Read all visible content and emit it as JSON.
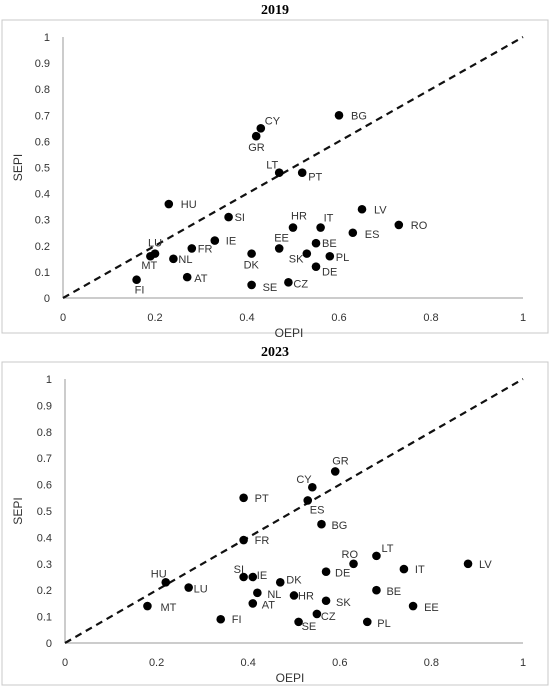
{
  "chart_data": [
    {
      "type": "scatter",
      "title": "2019",
      "xlabel": "OEPI",
      "ylabel": "SEPI",
      "xlim": [
        0,
        1
      ],
      "ylim": [
        0,
        1
      ],
      "xticks": [
        "0",
        "0.2",
        "0.4",
        "0.6",
        "0.8",
        "1"
      ],
      "yticks": [
        "0",
        "0.1",
        "0.2",
        "0.3",
        "0.4",
        "0.5",
        "0.6",
        "0.7",
        "0.8",
        "0.9",
        "1"
      ],
      "grid": false,
      "reference_line": "y = x (dashed)",
      "points": [
        {
          "label": "BG",
          "x": 0.6,
          "y": 0.7
        },
        {
          "label": "CY",
          "x": 0.43,
          "y": 0.65
        },
        {
          "label": "GR",
          "x": 0.42,
          "y": 0.62
        },
        {
          "label": "LT",
          "x": 0.47,
          "y": 0.48
        },
        {
          "label": "PT",
          "x": 0.52,
          "y": 0.48
        },
        {
          "label": "HU",
          "x": 0.23,
          "y": 0.36
        },
        {
          "label": "SI",
          "x": 0.36,
          "y": 0.31
        },
        {
          "label": "HR",
          "x": 0.5,
          "y": 0.27
        },
        {
          "label": "IT",
          "x": 0.56,
          "y": 0.27
        },
        {
          "label": "LV",
          "x": 0.65,
          "y": 0.34
        },
        {
          "label": "RO",
          "x": 0.73,
          "y": 0.28
        },
        {
          "label": "ES",
          "x": 0.63,
          "y": 0.25
        },
        {
          "label": "IE",
          "x": 0.33,
          "y": 0.22
        },
        {
          "label": "EE",
          "x": 0.47,
          "y": 0.19
        },
        {
          "label": "BE",
          "x": 0.55,
          "y": 0.21
        },
        {
          "label": "SK",
          "x": 0.53,
          "y": 0.17
        },
        {
          "label": "PL",
          "x": 0.58,
          "y": 0.16
        },
        {
          "label": "DE",
          "x": 0.55,
          "y": 0.12
        },
        {
          "label": "LU",
          "x": 0.2,
          "y": 0.17
        },
        {
          "label": "MT",
          "x": 0.19,
          "y": 0.16
        },
        {
          "label": "NL",
          "x": 0.24,
          "y": 0.15
        },
        {
          "label": "FR",
          "x": 0.28,
          "y": 0.19
        },
        {
          "label": "DK",
          "x": 0.41,
          "y": 0.17
        },
        {
          "label": "AT",
          "x": 0.27,
          "y": 0.08
        },
        {
          "label": "FI",
          "x": 0.16,
          "y": 0.07
        },
        {
          "label": "SE",
          "x": 0.41,
          "y": 0.05
        },
        {
          "label": "CZ",
          "x": 0.49,
          "y": 0.06
        }
      ]
    },
    {
      "type": "scatter",
      "title": "2023",
      "xlabel": "OEPI",
      "ylabel": "SEPI",
      "xlim": [
        0,
        1
      ],
      "ylim": [
        0,
        1
      ],
      "xticks": [
        "0",
        "0.2",
        "0.4",
        "0.6",
        "0.8",
        "1"
      ],
      "yticks": [
        "0",
        "0.1",
        "0.2",
        "0.3",
        "0.4",
        "0.5",
        "0.6",
        "0.7",
        "0.8",
        "0.9",
        "1"
      ],
      "grid": false,
      "reference_line": "y = x (dashed)",
      "points": [
        {
          "label": "GR",
          "x": 0.59,
          "y": 0.65
        },
        {
          "label": "CY",
          "x": 0.54,
          "y": 0.59
        },
        {
          "label": "ES",
          "x": 0.53,
          "y": 0.54
        },
        {
          "label": "PT",
          "x": 0.39,
          "y": 0.55
        },
        {
          "label": "BG",
          "x": 0.56,
          "y": 0.45
        },
        {
          "label": "FR",
          "x": 0.39,
          "y": 0.39
        },
        {
          "label": "RO",
          "x": 0.63,
          "y": 0.3
        },
        {
          "label": "LT",
          "x": 0.68,
          "y": 0.33
        },
        {
          "label": "IT",
          "x": 0.74,
          "y": 0.28
        },
        {
          "label": "LV",
          "x": 0.88,
          "y": 0.3
        },
        {
          "label": "DE",
          "x": 0.57,
          "y": 0.27
        },
        {
          "label": "HU",
          "x": 0.22,
          "y": 0.23
        },
        {
          "label": "LU",
          "x": 0.27,
          "y": 0.21
        },
        {
          "label": "SI",
          "x": 0.39,
          "y": 0.25
        },
        {
          "label": "IE",
          "x": 0.41,
          "y": 0.25
        },
        {
          "label": "DK",
          "x": 0.47,
          "y": 0.23
        },
        {
          "label": "NL",
          "x": 0.42,
          "y": 0.19
        },
        {
          "label": "HR",
          "x": 0.5,
          "y": 0.18
        },
        {
          "label": "BE",
          "x": 0.68,
          "y": 0.2
        },
        {
          "label": "EE",
          "x": 0.76,
          "y": 0.14
        },
        {
          "label": "SK",
          "x": 0.57,
          "y": 0.16
        },
        {
          "label": "AT",
          "x": 0.41,
          "y": 0.15
        },
        {
          "label": "MT",
          "x": 0.18,
          "y": 0.14
        },
        {
          "label": "CZ",
          "x": 0.55,
          "y": 0.11
        },
        {
          "label": "FI",
          "x": 0.34,
          "y": 0.09
        },
        {
          "label": "SE",
          "x": 0.51,
          "y": 0.08
        },
        {
          "label": "PL",
          "x": 0.66,
          "y": 0.08
        }
      ]
    }
  ],
  "label_offsets_note_removed": null
}
